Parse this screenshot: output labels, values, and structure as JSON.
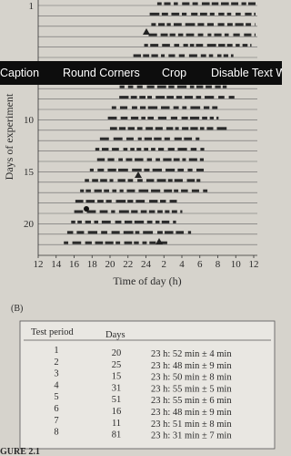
{
  "figure": {
    "y_axis": {
      "label": "Days of experiment",
      "ticks": [
        "1",
        "10",
        "15",
        "20"
      ]
    },
    "x_axis": {
      "label": "Time of day (h)",
      "ticks": [
        "12",
        "14",
        "16",
        "18",
        "20",
        "22",
        "24",
        "2",
        "4",
        "6",
        "8",
        "10",
        "12"
      ]
    },
    "panel_label": "(B)",
    "table": {
      "header": [
        "Test period",
        "Days"
      ],
      "rows": [
        [
          "1",
          "20",
          "23 h: 52 min ± 4 min"
        ],
        [
          "2",
          "25",
          "23 h: 48 min ± 9 min"
        ],
        [
          "3",
          "15",
          "23 h: 50 min ± 8 min"
        ],
        [
          "4",
          "31",
          "23 h: 55 min ± 5 min"
        ],
        [
          "5",
          "51",
          "23 h: 55 min ± 6 min"
        ],
        [
          "6",
          "16",
          "23 h: 48 min ± 9 min"
        ],
        [
          "7",
          "11",
          "23 h: 51 min ± 8 min"
        ],
        [
          "8",
          "81",
          "23 h: 31 min ± 7 min"
        ]
      ]
    },
    "caption": "GURE 2.1"
  },
  "toolbar": {
    "items": [
      "Caption",
      "Round Corners",
      "Crop",
      "Disable Text W"
    ]
  }
}
